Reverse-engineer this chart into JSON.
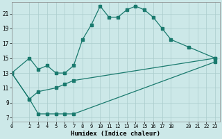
{
  "xlabel": "Humidex (Indice chaleur)",
  "bg_color": "#cce8e8",
  "grid_color": "#aacccc",
  "line_color": "#1a7a6e",
  "xlim": [
    0,
    23.5
  ],
  "ylim": [
    6.5,
    22.5
  ],
  "xticks": [
    0,
    2,
    3,
    4,
    5,
    6,
    7,
    8,
    9,
    10,
    11,
    12,
    13,
    14,
    15,
    16,
    17,
    18,
    20,
    21,
    22,
    23
  ],
  "yticks": [
    7,
    9,
    11,
    13,
    15,
    17,
    19,
    21
  ],
  "line1_x": [
    0,
    2,
    3,
    4,
    5,
    6,
    7,
    8,
    9,
    10,
    11,
    12,
    13,
    14,
    15,
    16,
    17,
    18,
    20,
    23
  ],
  "line1_y": [
    13,
    15,
    13.5,
    14,
    13,
    13,
    14,
    17.5,
    19.5,
    22,
    20.5,
    20.5,
    21.5,
    22,
    21.5,
    20.5,
    19,
    17.5,
    16.5,
    15
  ],
  "line2_x": [
    0,
    2,
    3,
    5,
    6,
    7,
    23
  ],
  "line2_y": [
    13,
    9.5,
    10.5,
    11,
    11.5,
    12,
    15
  ],
  "line3_x": [
    0,
    2,
    3,
    4,
    5,
    6,
    7,
    23
  ],
  "line3_y": [
    13,
    9.5,
    7.5,
    7.5,
    7.5,
    7.5,
    7.5,
    14.5
  ]
}
